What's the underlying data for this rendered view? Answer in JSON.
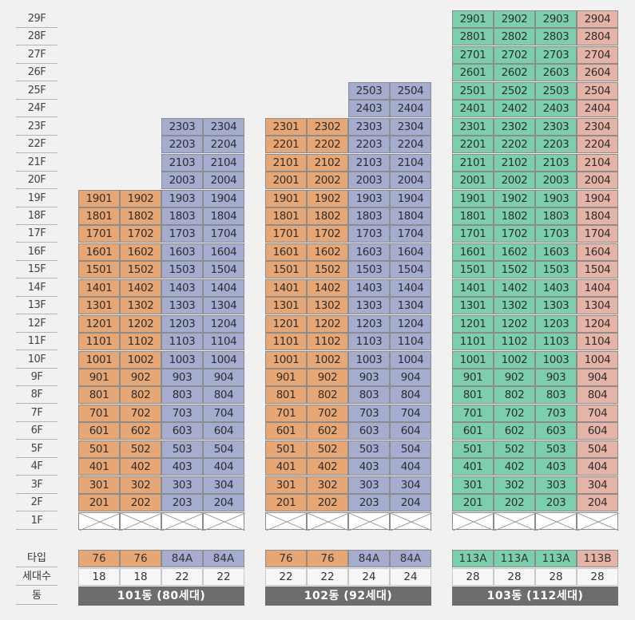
{
  "colors": {
    "orange": "#e7a774",
    "blue": "#a4acd0",
    "green": "#7ccfac",
    "pink": "#e5b4a6",
    "name_bar": "#6d6d6d"
  },
  "floor_labels": [
    "29F",
    "28F",
    "27F",
    "26F",
    "25F",
    "24F",
    "23F",
    "22F",
    "21F",
    "20F",
    "19F",
    "18F",
    "17F",
    "16F",
    "15F",
    "14F",
    "13F",
    "12F",
    "11F",
    "10F",
    "9F",
    "8F",
    "7F",
    "6F",
    "5F",
    "4F",
    "3F",
    "2F",
    "1F"
  ],
  "row_labels": {
    "type": "타입",
    "households": "세대수",
    "building": "동"
  },
  "buildings": [
    {
      "name": "101동 (80세대)",
      "top_floors": [
        19,
        19,
        23,
        23
      ],
      "line_colors": [
        "orange",
        "orange",
        "blue",
        "blue"
      ],
      "types": [
        "76",
        "76",
        "84A",
        "84A"
      ],
      "households": [
        "18",
        "18",
        "22",
        "22"
      ]
    },
    {
      "name": "102동 (92세대)",
      "top_floors": [
        23,
        23,
        25,
        25
      ],
      "line_colors": [
        "orange",
        "orange",
        "blue",
        "blue"
      ],
      "types": [
        "76",
        "76",
        "84A",
        "84A"
      ],
      "households": [
        "22",
        "22",
        "24",
        "24"
      ]
    },
    {
      "name": "103동 (112세대)",
      "top_floors": [
        29,
        29,
        29,
        29
      ],
      "line_colors": [
        "green",
        "green",
        "green",
        "pink"
      ],
      "types": [
        "113A",
        "113A",
        "113A",
        "113B"
      ],
      "households": [
        "28",
        "28",
        "28",
        "28"
      ]
    }
  ]
}
